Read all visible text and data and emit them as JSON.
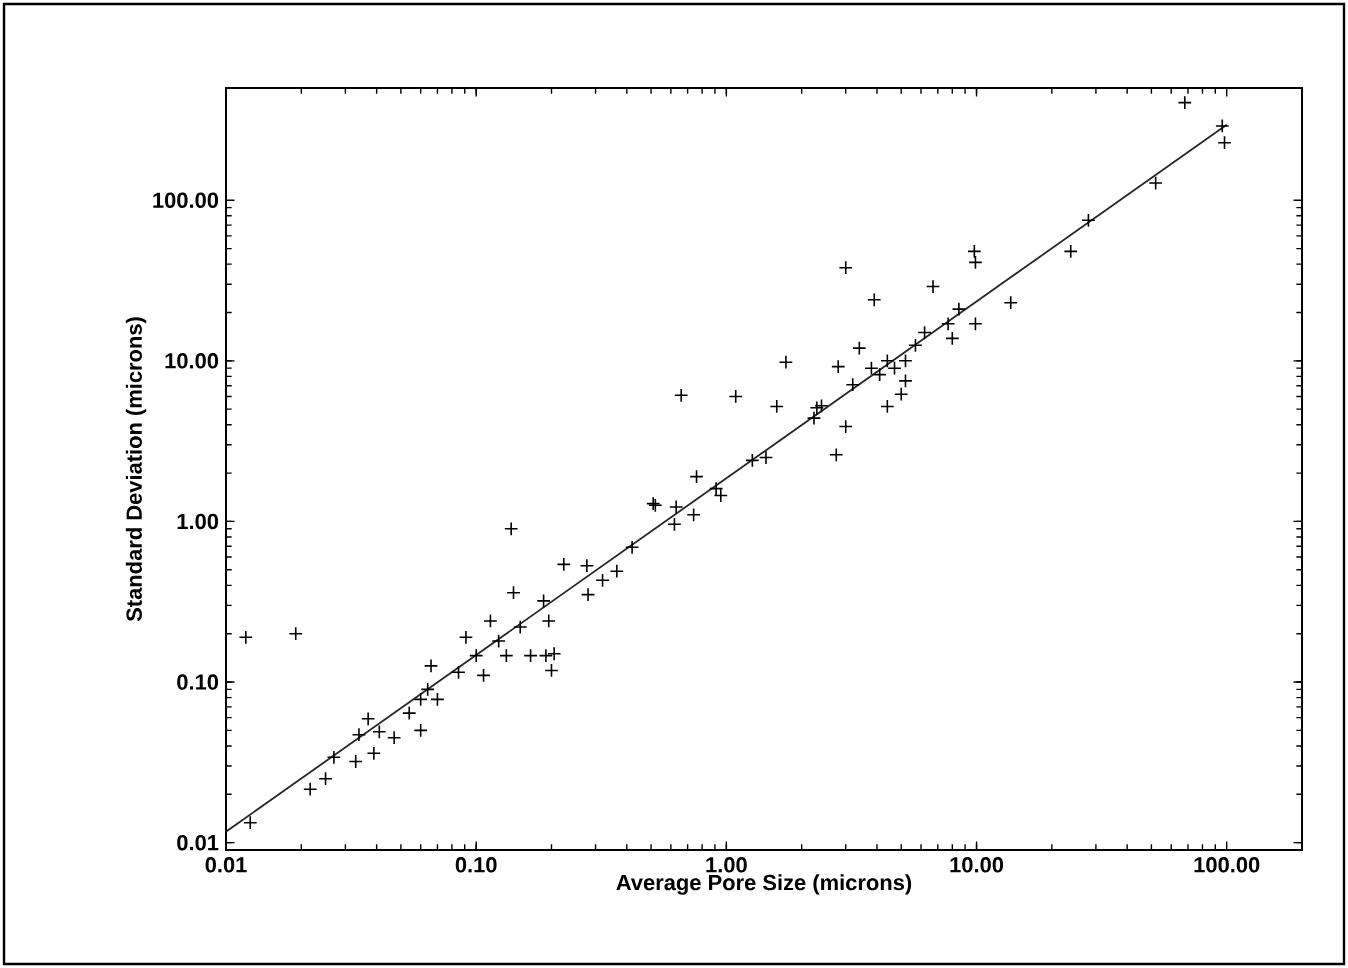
{
  "chart_data": {
    "type": "scatter",
    "xlabel": "Average Pore Size (microns)",
    "ylabel": "Standard Deviation (microns)",
    "log": "xy",
    "grid": false,
    "marker": "cross",
    "xlim": [
      0.01,
      200
    ],
    "ylim": [
      0.009,
      500
    ],
    "xticks": [
      {
        "value": 0.01,
        "label": "0.01"
      },
      {
        "value": 0.1,
        "label": "0.10"
      },
      {
        "value": 1,
        "label": "1.00"
      },
      {
        "value": 10,
        "label": "10.00"
      },
      {
        "value": 100,
        "label": "100.00"
      }
    ],
    "yticks": [
      {
        "value": 0.01,
        "label": "0.01"
      },
      {
        "value": 0.1,
        "label": "0.10"
      },
      {
        "value": 1,
        "label": "1.00"
      },
      {
        "value": 10,
        "label": "10.00"
      },
      {
        "value": 100,
        "label": "100.00"
      }
    ],
    "series": [
      {
        "color": "#000000",
        "x": [
          0.012,
          0.019,
          0.0125,
          0.0217,
          0.025,
          0.027,
          0.033,
          0.034,
          0.037,
          0.039,
          0.041,
          0.047,
          0.054,
          0.06,
          0.064,
          0.066,
          0.07,
          0.06,
          0.085,
          0.091,
          0.107,
          0.1,
          0.114,
          0.123,
          0.132,
          0.138,
          0.141,
          0.15,
          0.165,
          0.186,
          0.19,
          0.2,
          0.205,
          0.195,
          0.224,
          0.277,
          0.28,
          0.32,
          0.365,
          0.42,
          0.52,
          0.62,
          0.63,
          0.74,
          0.95,
          0.66,
          1.09,
          0.76,
          0.91,
          1.27,
          1.44,
          0.51,
          1.59,
          1.73,
          2.3,
          2.4,
          2.24,
          2.75,
          3.0,
          3.0,
          2.8,
          3.2,
          3.4,
          3.9,
          3.8,
          4.1,
          4.4,
          4.4,
          4.7,
          5.0,
          5.2,
          5.2,
          5.7,
          6.2,
          6.7,
          7.7,
          8.0,
          8.5,
          9.8,
          9.9,
          9.9,
          13.7,
          23.8,
          28,
          52,
          68,
          96,
          98
        ],
        "values": [
          0.19,
          0.2,
          0.0133,
          0.0215,
          0.025,
          0.034,
          0.032,
          0.047,
          0.059,
          0.036,
          0.049,
          0.045,
          0.064,
          0.05,
          0.09,
          0.126,
          0.078,
          0.078,
          0.115,
          0.19,
          0.11,
          0.146,
          0.24,
          0.18,
          0.146,
          0.9,
          0.36,
          0.22,
          0.146,
          0.32,
          0.146,
          0.118,
          0.15,
          0.24,
          0.54,
          0.53,
          0.35,
          0.43,
          0.49,
          0.69,
          1.26,
          0.96,
          1.23,
          1.1,
          1.45,
          6.1,
          6.0,
          1.9,
          1.6,
          2.4,
          2.5,
          1.29,
          5.2,
          9.8,
          5.1,
          5.25,
          4.4,
          2.6,
          3.9,
          38,
          9.2,
          7.1,
          12,
          24,
          9.0,
          8.2,
          10,
          5.2,
          9.0,
          6.2,
          7.5,
          10,
          12.5,
          15,
          29,
          17,
          13.8,
          21,
          48,
          41,
          17,
          23,
          48,
          75,
          128,
          405,
          290,
          228
        ]
      },
      {
        "type": "line",
        "color": "#262626",
        "marker": "none",
        "x": [
          0.01,
          100
        ],
        "values": [
          0.0117,
          295
        ]
      }
    ]
  }
}
